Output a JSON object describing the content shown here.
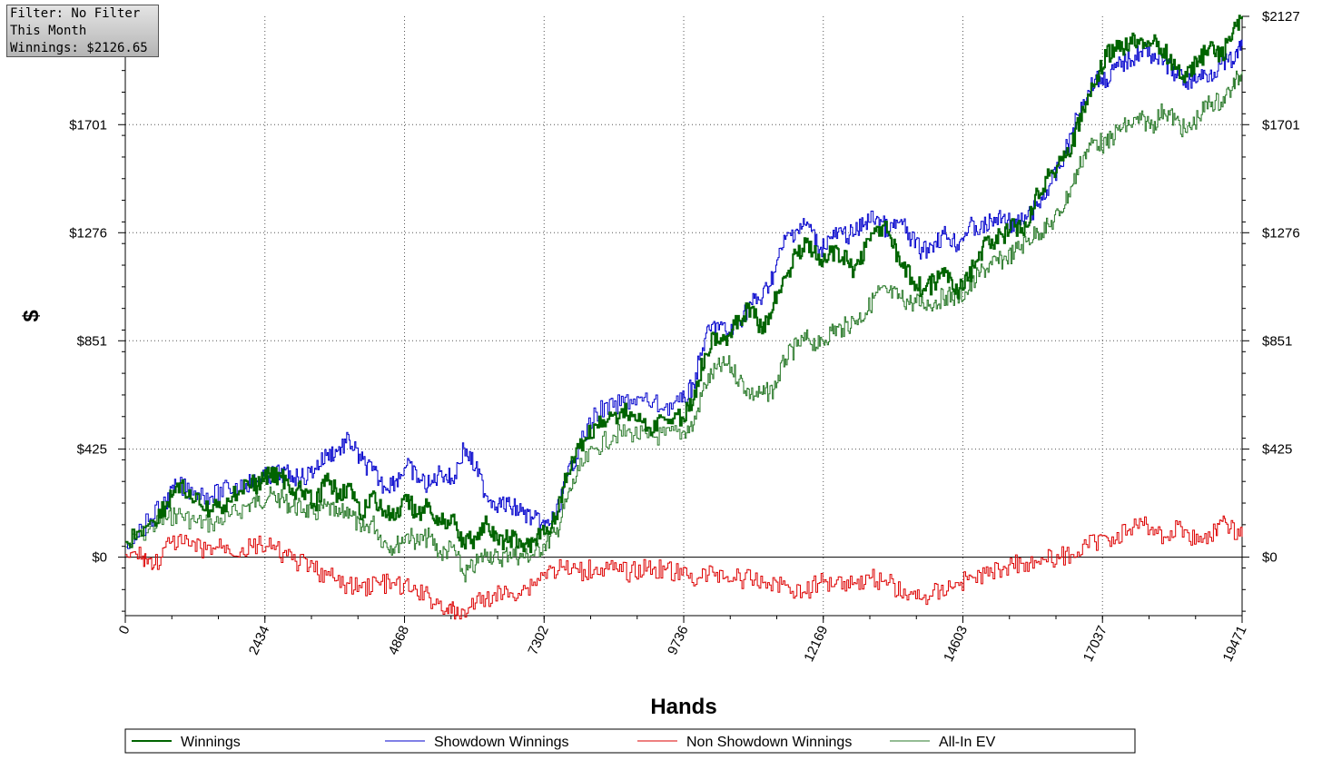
{
  "filter_box": {
    "filter": "Filter: No Filter",
    "period": "This Month",
    "winnings": "Winnings: $2126.65"
  },
  "chart_data": {
    "type": "line",
    "title": "",
    "xlabel": "Hands",
    "ylabel": "$",
    "xlim": [
      0,
      19471
    ],
    "ylim": [
      -230,
      2127
    ],
    "x_ticks": [
      "0",
      "2434",
      "4868",
      "7302",
      "9736",
      "12169",
      "14603",
      "17037",
      "19471"
    ],
    "y_ticks": [
      {
        "value": 0,
        "label": "$0"
      },
      {
        "value": 425,
        "label": "$425"
      },
      {
        "value": 851,
        "label": "$851"
      },
      {
        "value": 1276,
        "label": "$1276"
      },
      {
        "value": 1701,
        "label": "$1701"
      },
      {
        "value": 2127,
        "label": "$2127"
      }
    ],
    "grid": true,
    "legend_position": "bottom",
    "series": [
      {
        "name": "Winnings",
        "color": "#006400",
        "x": [
          0,
          400,
          700,
          900,
          1200,
          1500,
          1800,
          2100,
          2300,
          2500,
          2700,
          2900,
          3100,
          3300,
          3500,
          3700,
          3900,
          4100,
          4300,
          4500,
          4700,
          4900,
          5100,
          5300,
          5500,
          5700,
          5900,
          6100,
          6300,
          6500,
          6700,
          6900,
          7100,
          7300,
          7500,
          7700,
          7900,
          8200,
          8500,
          8800,
          9100,
          9400,
          9700,
          9900,
          10100,
          10300,
          10500,
          10700,
          10900,
          11100,
          11300,
          11500,
          11700,
          11900,
          12100,
          12300,
          12500,
          12700,
          12900,
          13100,
          13300,
          13500,
          13700,
          13900,
          14100,
          14300,
          14500,
          14700,
          14900,
          15100,
          15300,
          15500,
          15700,
          15900,
          16100,
          16300,
          16500,
          16700,
          16900,
          17100,
          17300,
          17500,
          17700,
          17900,
          18100,
          18300,
          18500,
          18700,
          18900,
          19100,
          19300,
          19471
        ],
        "values": [
          60,
          130,
          200,
          290,
          220,
          180,
          220,
          300,
          280,
          330,
          320,
          270,
          260,
          200,
          300,
          250,
          280,
          150,
          250,
          180,
          150,
          220,
          170,
          200,
          130,
          160,
          50,
          80,
          130,
          50,
          80,
          40,
          60,
          90,
          160,
          330,
          430,
          520,
          560,
          570,
          510,
          540,
          550,
          620,
          800,
          880,
          870,
          930,
          980,
          880,
          1000,
          1100,
          1200,
          1240,
          1150,
          1200,
          1180,
          1130,
          1220,
          1300,
          1280,
          1150,
          1100,
          1050,
          1080,
          1120,
          1050,
          1100,
          1200,
          1250,
          1260,
          1300,
          1300,
          1440,
          1500,
          1560,
          1620,
          1760,
          1860,
          1970,
          2000,
          2020,
          2040,
          2020,
          2000,
          1920,
          1890,
          1950,
          2010,
          1970,
          2060,
          2127
        ]
      },
      {
        "name": "Showdown Winnings",
        "color": "#0000cc",
        "x": [
          0,
          400,
          700,
          900,
          1200,
          1500,
          1800,
          2100,
          2300,
          2500,
          2700,
          2900,
          3100,
          3300,
          3500,
          3700,
          3900,
          4100,
          4300,
          4500,
          4700,
          4900,
          5100,
          5300,
          5500,
          5700,
          5900,
          6100,
          6300,
          6500,
          6700,
          6900,
          7100,
          7300,
          7500,
          7700,
          7900,
          8200,
          8500,
          8800,
          9100,
          9400,
          9700,
          9900,
          10100,
          10300,
          10500,
          10700,
          10900,
          11100,
          11300,
          11500,
          11700,
          11900,
          12100,
          12300,
          12500,
          12700,
          12900,
          13100,
          13300,
          13500,
          13700,
          13900,
          14100,
          14300,
          14500,
          14700,
          14900,
          15100,
          15300,
          15500,
          15700,
          15900,
          16100,
          16300,
          16500,
          16700,
          16900,
          17100,
          17300,
          17500,
          17700,
          17900,
          18100,
          18300,
          18500,
          18700,
          18900,
          19100,
          19300,
          19471
        ],
        "values": [
          60,
          140,
          220,
          280,
          260,
          240,
          270,
          290,
          300,
          320,
          330,
          320,
          310,
          350,
          400,
          420,
          460,
          380,
          340,
          280,
          300,
          360,
          310,
          280,
          340,
          300,
          430,
          350,
          240,
          210,
          200,
          180,
          150,
          120,
          160,
          320,
          430,
          570,
          590,
          620,
          610,
          590,
          610,
          680,
          860,
          920,
          880,
          930,
          1000,
          1020,
          1120,
          1250,
          1290,
          1310,
          1210,
          1260,
          1270,
          1270,
          1320,
          1340,
          1280,
          1320,
          1250,
          1200,
          1240,
          1270,
          1230,
          1300,
          1290,
          1320,
          1340,
          1300,
          1330,
          1380,
          1460,
          1540,
          1670,
          1800,
          1880,
          1880,
          1930,
          1960,
          1990,
          1980,
          1950,
          1900,
          1870,
          1890,
          1900,
          1940,
          1950,
          2010
        ]
      },
      {
        "name": "Non Showdown Winnings",
        "color": "#dd0000",
        "x": [
          0,
          300,
          500,
          800,
          1100,
          1400,
          1700,
          2000,
          2300,
          2600,
          2900,
          3200,
          3500,
          3800,
          4100,
          4400,
          4700,
          5000,
          5300,
          5600,
          5800,
          6100,
          6400,
          6700,
          7000,
          7300,
          7600,
          7900,
          8200,
          8500,
          8800,
          9100,
          9400,
          9700,
          10000,
          10300,
          10600,
          10900,
          11200,
          11500,
          11800,
          12100,
          12400,
          12700,
          13000,
          13300,
          13600,
          13900,
          14200,
          14500,
          14800,
          15100,
          15400,
          15700,
          16000,
          16300,
          16600,
          16900,
          17200,
          17500,
          17800,
          18100,
          18400,
          18700,
          19000,
          19200,
          19471
        ],
        "values": [
          10,
          5,
          -30,
          60,
          45,
          30,
          45,
          20,
          50,
          30,
          -10,
          -40,
          -70,
          -110,
          -120,
          -100,
          -110,
          -130,
          -160,
          -200,
          -230,
          -180,
          -150,
          -140,
          -120,
          -60,
          -40,
          -60,
          -40,
          -50,
          -60,
          -40,
          -50,
          -70,
          -80,
          -60,
          -80,
          -90,
          -100,
          -110,
          -140,
          -100,
          -90,
          -100,
          -80,
          -100,
          -150,
          -160,
          -130,
          -100,
          -80,
          -60,
          -30,
          -20,
          -10,
          0,
          20,
          60,
          80,
          110,
          130,
          80,
          120,
          60,
          110,
          130,
          80
        ]
      },
      {
        "name": "All-In EV",
        "color": "#2a7a2a",
        "x": [
          0,
          400,
          700,
          900,
          1200,
          1500,
          1800,
          2100,
          2300,
          2500,
          2700,
          2900,
          3100,
          3300,
          3500,
          3700,
          3900,
          4100,
          4300,
          4500,
          4700,
          4900,
          5100,
          5300,
          5500,
          5700,
          5900,
          6100,
          6300,
          6500,
          6700,
          6900,
          7100,
          7300,
          7500,
          7700,
          7900,
          8200,
          8500,
          8800,
          9100,
          9400,
          9700,
          9900,
          10100,
          10300,
          10500,
          10700,
          10900,
          11100,
          11300,
          11500,
          11700,
          11900,
          12100,
          12300,
          12500,
          12700,
          12900,
          13100,
          13300,
          13500,
          13700,
          13900,
          14100,
          14300,
          14500,
          14700,
          14900,
          15100,
          15300,
          15500,
          15700,
          15900,
          16100,
          16300,
          16500,
          16700,
          16900,
          17100,
          17300,
          17500,
          17700,
          17900,
          18100,
          18300,
          18500,
          18700,
          18900,
          19100,
          19300,
          19471
        ],
        "values": [
          40,
          110,
          150,
          170,
          140,
          130,
          160,
          200,
          220,
          240,
          230,
          200,
          190,
          170,
          200,
          160,
          190,
          100,
          140,
          60,
          40,
          90,
          60,
          80,
          10,
          40,
          -70,
          -30,
          20,
          -10,
          20,
          0,
          10,
          50,
          90,
          230,
          340,
          430,
          480,
          490,
          470,
          480,
          490,
          520,
          680,
          740,
          760,
          700,
          640,
          640,
          660,
          780,
          830,
          860,
          830,
          890,
          900,
          930,
          960,
          1040,
          1040,
          1020,
          1000,
          1000,
          1000,
          1030,
          1020,
          1050,
          1120,
          1150,
          1170,
          1200,
          1240,
          1280,
          1300,
          1360,
          1460,
          1580,
          1640,
          1620,
          1680,
          1700,
          1720,
          1700,
          1760,
          1720,
          1670,
          1730,
          1790,
          1790,
          1850,
          1910
        ]
      }
    ]
  }
}
